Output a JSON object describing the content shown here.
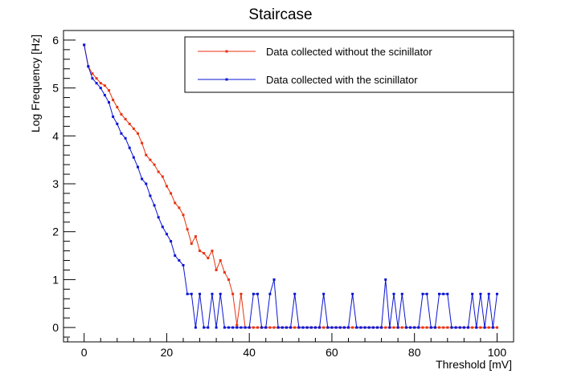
{
  "chart_data": {
    "type": "line",
    "title": "Staircase",
    "xlabel": "Threshold [mV]",
    "ylabel": "Log Frequency [Hz]",
    "xlim": [
      -5,
      104
    ],
    "ylim": [
      -0.3,
      6.2
    ],
    "xticks": [
      0,
      20,
      40,
      60,
      80,
      100
    ],
    "yticks": [
      0,
      1,
      2,
      3,
      4,
      5,
      6
    ],
    "grid": false,
    "legend_position": "top-right",
    "series": [
      {
        "name": "Data collected without the scinillator",
        "color": "#e8320f",
        "x": [
          0,
          1,
          2,
          3,
          4,
          5,
          6,
          7,
          8,
          9,
          10,
          11,
          12,
          13,
          14,
          15,
          16,
          17,
          18,
          19,
          20,
          21,
          22,
          23,
          24,
          25,
          26,
          27,
          28,
          29,
          30,
          31,
          32,
          33,
          34,
          35,
          36,
          37,
          38,
          39,
          40,
          41,
          42,
          43,
          44,
          45,
          46,
          47,
          48,
          49,
          50,
          51,
          52,
          53,
          54,
          55,
          56,
          57,
          58,
          59,
          60,
          61,
          62,
          63,
          64,
          65,
          66,
          67,
          68,
          69,
          70,
          71,
          72,
          73,
          74,
          75,
          76,
          77,
          78,
          79,
          80,
          81,
          82,
          83,
          84,
          85,
          86,
          87,
          88,
          89,
          90,
          91,
          92,
          93,
          94,
          95,
          96,
          97,
          98,
          99,
          100
        ],
        "y": [
          5.9,
          5.45,
          5.3,
          5.2,
          5.1,
          5.05,
          4.95,
          4.75,
          4.6,
          4.45,
          4.35,
          4.25,
          4.15,
          4.05,
          3.85,
          3.6,
          3.5,
          3.4,
          3.25,
          3.15,
          2.95,
          2.8,
          2.6,
          2.5,
          2.35,
          2.05,
          1.75,
          1.9,
          1.6,
          1.55,
          1.45,
          1.6,
          1.2,
          1.4,
          1.15,
          1.0,
          0.7,
          0.05,
          0.7,
          0,
          0,
          0,
          0,
          0,
          0,
          0,
          0,
          0,
          0,
          0,
          0,
          0,
          0,
          0,
          0,
          0,
          0,
          0,
          0,
          0,
          0,
          0,
          0,
          0,
          0,
          0,
          0,
          0,
          0,
          0,
          0,
          0,
          0,
          0,
          0,
          0,
          0,
          0,
          0,
          0,
          0,
          0,
          0,
          0,
          0,
          0,
          0,
          0,
          0,
          0,
          0,
          0,
          0,
          0,
          0,
          0,
          0,
          0,
          0,
          0,
          0
        ]
      },
      {
        "name": "Data collected with the scinillator",
        "color": "#0a14d2",
        "x": [
          0,
          1,
          2,
          3,
          4,
          5,
          6,
          7,
          8,
          9,
          10,
          11,
          12,
          13,
          14,
          15,
          16,
          17,
          18,
          19,
          20,
          21,
          22,
          23,
          24,
          25,
          26,
          27,
          28,
          29,
          30,
          31,
          32,
          33,
          34,
          35,
          36,
          37,
          38,
          39,
          40,
          41,
          42,
          43,
          44,
          45,
          46,
          47,
          48,
          49,
          50,
          51,
          52,
          53,
          54,
          55,
          56,
          57,
          58,
          59,
          60,
          61,
          62,
          63,
          64,
          65,
          66,
          67,
          68,
          69,
          70,
          71,
          72,
          73,
          74,
          75,
          76,
          77,
          78,
          79,
          80,
          81,
          82,
          83,
          84,
          85,
          86,
          87,
          88,
          89,
          90,
          91,
          92,
          93,
          94,
          95,
          96,
          97,
          98,
          99,
          100
        ],
        "y": [
          5.9,
          5.45,
          5.2,
          5.1,
          5.0,
          4.85,
          4.7,
          4.4,
          4.25,
          4.05,
          3.95,
          3.75,
          3.55,
          3.35,
          3.1,
          3.0,
          2.75,
          2.55,
          2.3,
          2.1,
          1.95,
          1.8,
          1.5,
          1.4,
          1.3,
          0.7,
          0.7,
          0,
          0.7,
          0,
          0,
          0.7,
          0,
          0.7,
          0,
          0,
          0,
          0,
          0,
          0,
          0,
          0.7,
          0.7,
          0,
          0,
          0.7,
          1.0,
          0,
          0,
          0,
          0,
          0.7,
          0,
          0,
          0,
          0,
          0,
          0,
          0.7,
          0,
          0,
          0,
          0,
          0,
          0,
          0.7,
          0,
          0,
          0,
          0,
          0,
          0,
          0,
          1.0,
          0,
          0.7,
          0,
          0.7,
          0,
          0,
          0,
          0,
          0.7,
          0.7,
          0,
          0,
          0.7,
          0.7,
          0.7,
          0,
          0,
          0,
          0,
          0,
          0.7,
          0,
          0.7,
          0,
          0.7,
          0,
          0.7
        ]
      }
    ]
  }
}
